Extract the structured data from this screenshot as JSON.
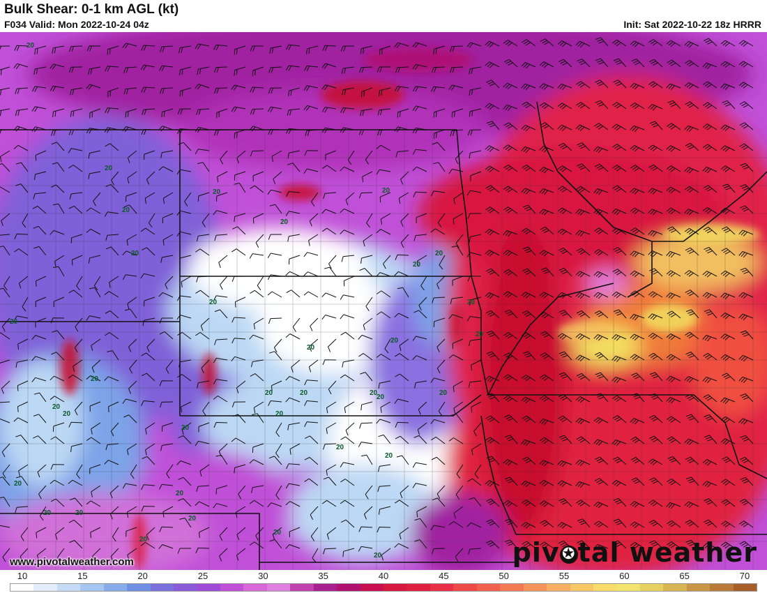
{
  "header": {
    "title": "Bulk Shear: 0-1 km AGL (kt)",
    "valid": "F034 Valid: Mon 2022-10-24 04z",
    "init": "Init: Sat 2022-10-22 18z HRRR"
  },
  "footer": {
    "website": "www.pivotalweather.com",
    "logo_left": "piv",
    "logo_dot": "✪",
    "logo_right": "tal weather"
  },
  "map": {
    "contour_label": "20",
    "colors": {
      "white": "#ffffff",
      "light_blue": "#bcd8f4",
      "blue": "#7da3e8",
      "violet": "#8060d8",
      "magenta": "#c050d8",
      "pink": "#e070e0",
      "purple": "#a020a0",
      "red": "#e0204a",
      "deep_red": "#c8102e",
      "orange": "#f07a3a",
      "yellow": "#f2e060"
    }
  },
  "colorbar": {
    "ticks": [
      "10",
      "15",
      "20",
      "25",
      "30",
      "35",
      "40",
      "45",
      "50",
      "55",
      "60",
      "65",
      "70"
    ],
    "colors": [
      "#ffffff",
      "#e4eefb",
      "#c6dcf6",
      "#a6c5f0",
      "#86acea",
      "#7090e4",
      "#7a70dc",
      "#8a5ad8",
      "#a04ad8",
      "#c050d8",
      "#d868d8",
      "#e080e0",
      "#c040b0",
      "#a82090",
      "#b01070",
      "#c81050",
      "#d81840",
      "#e02040",
      "#e83048",
      "#ee4a4a",
      "#f26050",
      "#f47a56",
      "#f6945c",
      "#f8ae62",
      "#f8c866",
      "#f8dc6a",
      "#f2e46c",
      "#e6d060",
      "#d8b452",
      "#c89644",
      "#b87a36",
      "#a85e28"
    ]
  }
}
